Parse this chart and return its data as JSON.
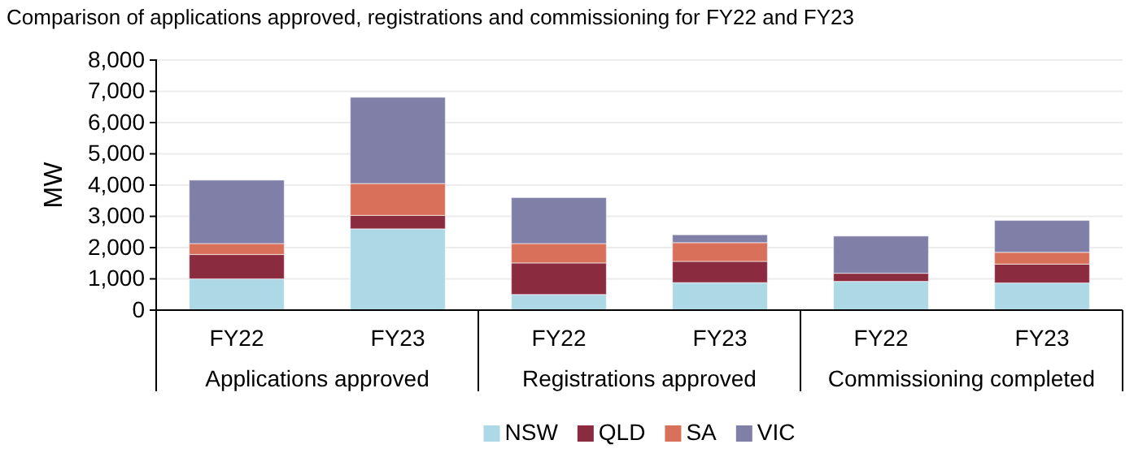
{
  "chart_data": {
    "type": "bar",
    "title": "Comparison of applications approved, registrations and commissioning for FY22 and FY23",
    "ylabel": "MW",
    "categories": [
      "FY22",
      "FY23",
      "FY22",
      "FY23",
      "FY22",
      "FY23"
    ],
    "annotations": [
      "Applications approved",
      "Registrations approved",
      "Commissioning completed"
    ],
    "stacked": true,
    "ylim": [
      0,
      8000
    ],
    "yticks": [
      {
        "value": 0,
        "label": "0"
      },
      {
        "value": 1000,
        "label": "1,000"
      },
      {
        "value": 2000,
        "label": "2,000"
      },
      {
        "value": 3000,
        "label": "3,000"
      },
      {
        "value": 4000,
        "label": "4,000"
      },
      {
        "value": 5000,
        "label": "5,000"
      },
      {
        "value": 6000,
        "label": "6,000"
      },
      {
        "value": 7000,
        "label": "7,000"
      },
      {
        "value": 8000,
        "label": "8,000"
      }
    ],
    "grid": "y",
    "legend": "bottom",
    "series": [
      {
        "name": "NSW",
        "color": "#add8e6",
        "values": [
          1000,
          2600,
          500,
          880,
          920,
          870
        ]
      },
      {
        "name": "QLD",
        "color": "#8b2b40",
        "values": [
          780,
          430,
          1010,
          680,
          260,
          600
        ]
      },
      {
        "name": "SA",
        "color": "#d9705a",
        "values": [
          350,
          1020,
          620,
          600,
          0,
          380
        ]
      },
      {
        "name": "VIC",
        "color": "#7f7fa8",
        "values": [
          2030,
          2760,
          1470,
          250,
          1190,
          1020
        ]
      }
    ]
  }
}
